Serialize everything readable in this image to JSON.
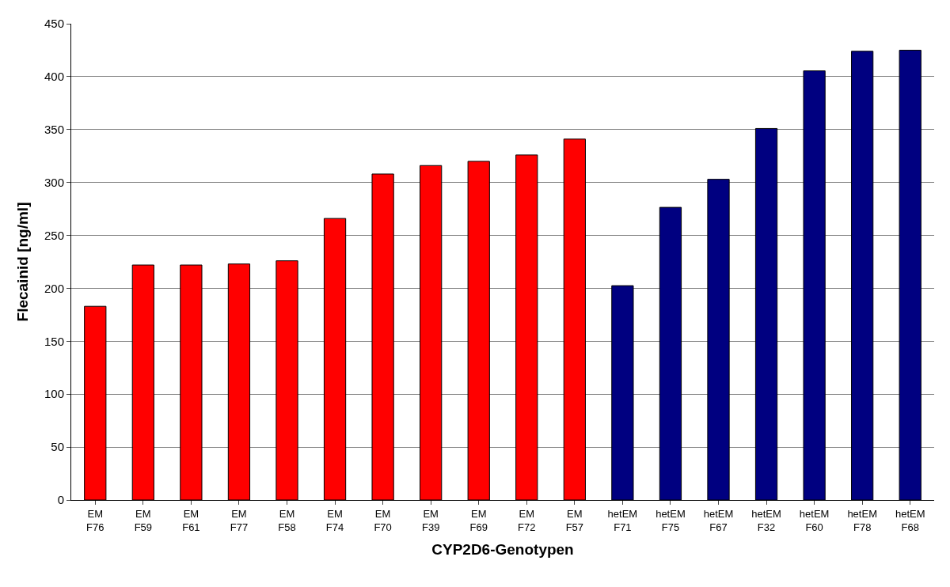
{
  "chart_data": {
    "type": "bar",
    "xlabel": "CYP2D6-Genotypen",
    "ylabel": "Flecainid [ng/ml]",
    "categories": [
      "EM\nF76",
      "EM\nF59",
      "EM\nF61",
      "EM\nF77",
      "EM\nF58",
      "EM\nF74",
      "EM\nF70",
      "EM\nF39",
      "EM\nF69",
      "EM\nF72",
      "EM\nF57",
      "hetEM\nF71",
      "hetEM\nF75",
      "hetEM\nF67",
      "hetEM\nF32",
      "hetEM\nF60",
      "hetEM\nF78",
      "hetEM\nF68"
    ],
    "values": [
      183,
      222,
      222,
      223,
      226,
      266,
      308,
      316,
      320,
      326,
      341,
      202.5,
      276.5,
      303,
      351,
      405.5,
      424,
      425
    ],
    "colors": [
      "#ff0000",
      "#ff0000",
      "#ff0000",
      "#ff0000",
      "#ff0000",
      "#ff0000",
      "#ff0000",
      "#ff0000",
      "#ff0000",
      "#ff0000",
      "#ff0000",
      "#000080",
      "#000080",
      "#000080",
      "#000080",
      "#000080",
      "#000080",
      "#000080"
    ],
    "ylim": [
      0,
      450
    ],
    "yticks": [
      0,
      50,
      100,
      150,
      200,
      250,
      300,
      350,
      400,
      450
    ],
    "grid": "y",
    "legend": false
  }
}
